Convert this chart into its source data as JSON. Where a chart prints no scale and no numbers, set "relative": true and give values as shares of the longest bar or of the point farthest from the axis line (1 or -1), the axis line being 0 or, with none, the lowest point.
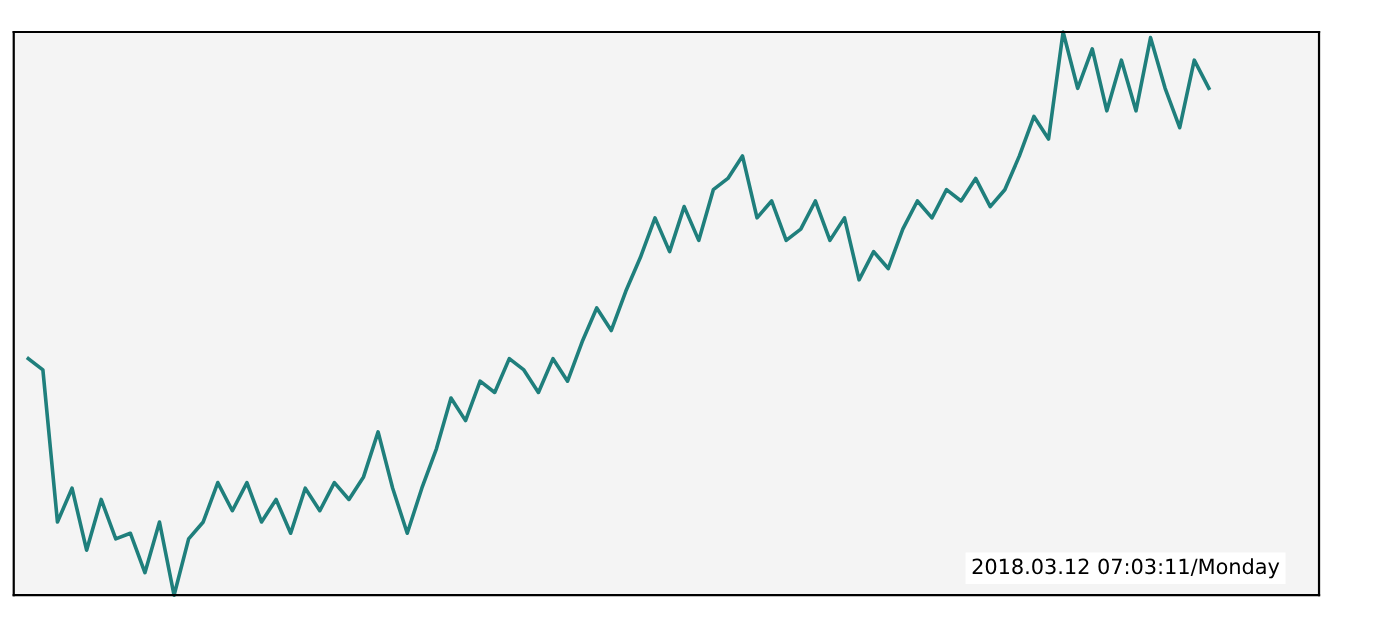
{
  "chart_data": {
    "type": "line",
    "relative": true,
    "grid": false,
    "line_style": "solid",
    "marker": "none",
    "categories": [
      null,
      null,
      null,
      null,
      null,
      null,
      null,
      null,
      null,
      null,
      null,
      null,
      null,
      null,
      null,
      null,
      null,
      null,
      null,
      null,
      null,
      null,
      null,
      null,
      null,
      null,
      null,
      null,
      null,
      null,
      null,
      null,
      null,
      null,
      null,
      null,
      null,
      null,
      null,
      null,
      null,
      null,
      null,
      null,
      null,
      null,
      null,
      null,
      null,
      null,
      null,
      null,
      null,
      null,
      null,
      null,
      null,
      null,
      null,
      null,
      null,
      null,
      null,
      null,
      null,
      null,
      null,
      null,
      null,
      null,
      null,
      null,
      null,
      null,
      null,
      null,
      null,
      null,
      null,
      null,
      null,
      null
    ],
    "series": [
      {
        "color": "#1f7f7c",
        "values": [
          0.42,
          0.4,
          0.13,
          0.19,
          0.08,
          0.17,
          0.1,
          0.11,
          0.04,
          0.13,
          0,
          0.1,
          0.13,
          0.2,
          0.15,
          0.2,
          0.13,
          0.17,
          0.11,
          0.19,
          0.15,
          0.2,
          0.17,
          0.21,
          0.29,
          0.19,
          0.11,
          0.19,
          0.26,
          0.35,
          0.31,
          0.38,
          0.36,
          0.42,
          0.4,
          0.36,
          0.42,
          0.38,
          0.45,
          0.51,
          0.47,
          0.54,
          0.6,
          0.67,
          0.61,
          0.69,
          0.63,
          0.72,
          0.74,
          0.78,
          0.67,
          0.7,
          0.63,
          0.65,
          0.7,
          0.63,
          0.67,
          0.56,
          0.61,
          0.58,
          0.65,
          0.7,
          0.67,
          0.72,
          0.7,
          0.74,
          0.69,
          0.72,
          0.78,
          0.85,
          0.81,
          1,
          0.9,
          0.97,
          0.86,
          0.95,
          0.86,
          0.99,
          0.9,
          0.83,
          0.95,
          0.9
        ]
      }
    ],
    "annotations": [
      "2018.03.12 07:03:11/Monday"
    ]
  }
}
